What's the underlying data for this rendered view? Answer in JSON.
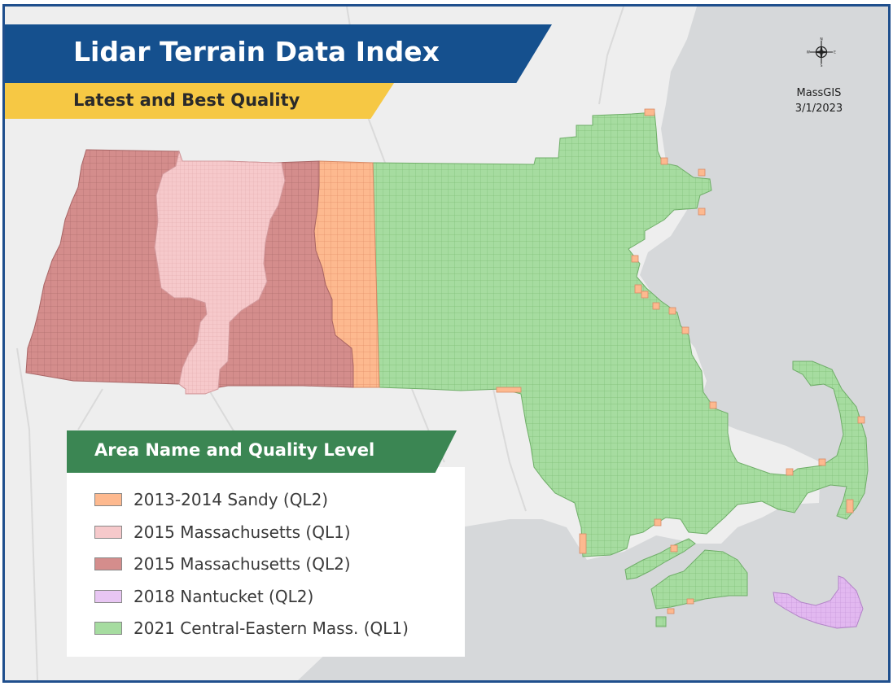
{
  "title": "Lidar Terrain Data Index",
  "subtitle": "Latest and Best Quality",
  "credit": {
    "org": "MassGIS",
    "date": "3/1/2023"
  },
  "compass": {
    "n": "N",
    "s": "S",
    "e": "E",
    "w": "W"
  },
  "legend": {
    "title": "Area Name and Quality Level",
    "items": [
      {
        "label": "2013-2014 Sandy (QL2)",
        "color": "#fdb98f"
      },
      {
        "label": "2015 Massachusetts (QL1)",
        "color": "#f6c9cb"
      },
      {
        "label": "2015 Massachusetts (QL2)",
        "color": "#d48d8c"
      },
      {
        "label": "2018 Nantucket (QL2)",
        "color": "#e8c6f3"
      },
      {
        "label": "2021 Central-Eastern Mass. (QL1)",
        "color": "#a6dca0"
      }
    ]
  },
  "colors": {
    "frame": "#1f4f8d",
    "title_banner": "#15508e",
    "subtitle_banner": "#f6c844",
    "legend_header": "#3b8653",
    "basemap_land": "#eeeeee",
    "basemap_water": "#d6d8da"
  }
}
